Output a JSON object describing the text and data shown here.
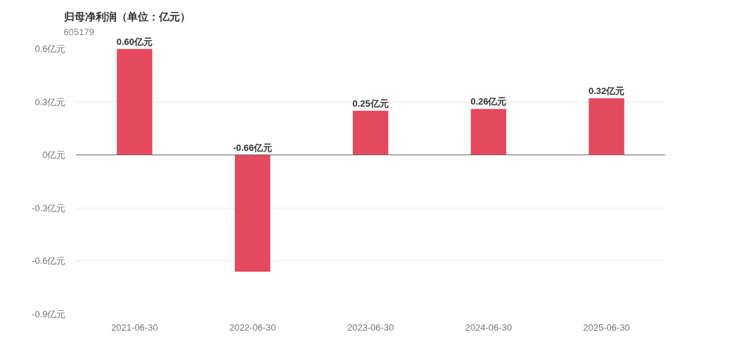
{
  "chart_data": {
    "type": "bar",
    "title": "归母净利润（单位：亿元）",
    "subtitle": "605179",
    "categories": [
      "2021-06-30",
      "2022-06-30",
      "2023-06-30",
      "2024-06-30",
      "2025-06-30"
    ],
    "values": [
      0.6,
      -0.66,
      0.25,
      0.26,
      0.32
    ],
    "color": "#e4495e",
    "value_labels": [
      "0.60亿元",
      "-0.66亿元",
      "0.25亿元",
      "0.26亿元",
      "0.32亿元"
    ],
    "ylim": [
      -0.9,
      0.6
    ],
    "yticks": [
      {
        "value": -0.9,
        "label": "-0.9亿元"
      },
      {
        "value": -0.6,
        "label": "-0.6亿元"
      },
      {
        "value": -0.3,
        "label": "-0.3亿元"
      },
      {
        "value": 0,
        "label": "0亿元"
      },
      {
        "value": 0.3,
        "label": "0.3亿元"
      },
      {
        "value": 0.6,
        "label": "0.6亿元"
      }
    ],
    "grid": "y"
  }
}
